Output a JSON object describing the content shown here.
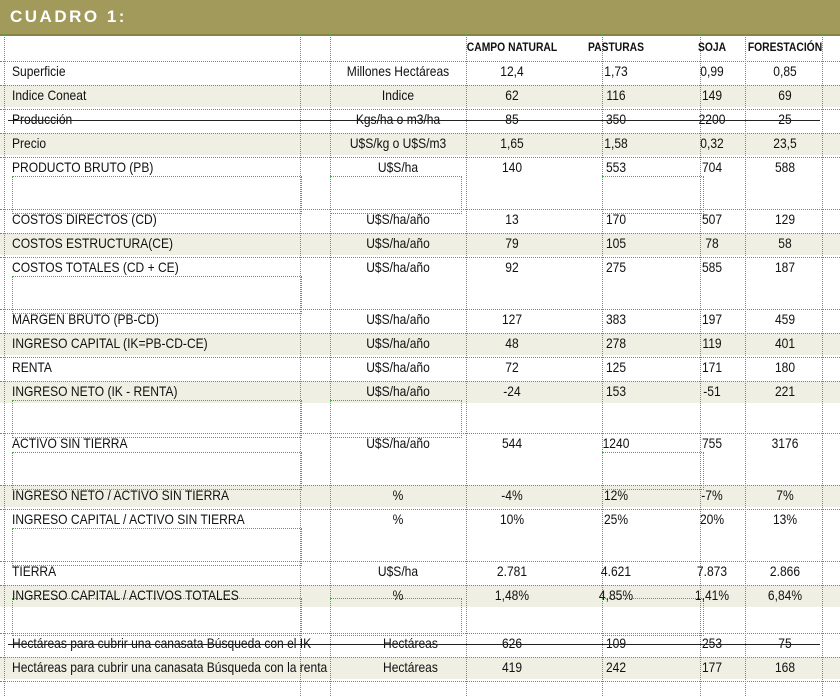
{
  "title": "CUADRO 1:",
  "headers": [
    "CAMPO NATURAL",
    "PASTURAS",
    "SOJA",
    "FORESTACIÓN"
  ],
  "rows": [
    {
      "label": "Superficie",
      "unit": "Millones Hectáreas",
      "values": [
        "12,4",
        "1,73",
        "0,99",
        "0,85"
      ]
    },
    {
      "label": "Indice Coneat",
      "unit": "Indice",
      "values": [
        "62",
        "116",
        "149",
        "69"
      ]
    },
    {
      "label": "Producción",
      "unit": "Kgs/ha o m3/ha",
      "values": [
        "85",
        "350",
        "2200",
        "25"
      ]
    },
    {
      "label": "Precio",
      "unit": "U$S/kg o U$S/m3",
      "values": [
        "1,65",
        "1,58",
        "0,32",
        "23,5"
      ]
    },
    {
      "label": "PRODUCTO BRUTO (PB)",
      "unit": "U$S/ha",
      "values": [
        "140",
        "553",
        "704",
        "588"
      ]
    },
    {
      "label": "COSTOS DIRECTOS (CD)",
      "unit": "U$S/ha/año",
      "values": [
        "13",
        "170",
        "507",
        "129"
      ]
    },
    {
      "label": "COSTOS ESTRUCTURA(CE)",
      "unit": "U$S/ha/año",
      "values": [
        "79",
        "105",
        "78",
        "58"
      ]
    },
    {
      "label": "COSTOS TOTALES (CD + CE)",
      "unit": "U$S/ha/año",
      "values": [
        "92",
        "275",
        "585",
        "187"
      ]
    },
    {
      "label": "MARGEN BRUTO (PB-CD)",
      "unit": "U$S/ha/año",
      "values": [
        "127",
        "383",
        "197",
        "459"
      ]
    },
    {
      "label": "INGRESO CAPITAL (IK=PB-CD-CE)",
      "unit": "U$S/ha/año",
      "values": [
        "48",
        "278",
        "119",
        "401"
      ]
    },
    {
      "label": "RENTA",
      "unit": "U$S/ha/año",
      "values": [
        "72",
        "125",
        "171",
        "180"
      ]
    },
    {
      "label": "INGRESO NETO (IK - RENTA)",
      "unit": "U$S/ha/año",
      "values": [
        "-24",
        "153",
        "-51",
        "221"
      ]
    },
    {
      "label": "ACTIVO SIN TIERRA",
      "unit": "U$S/ha/año",
      "values": [
        "544",
        "1240",
        "755",
        "3176"
      ]
    },
    {
      "label": "INGRESO NETO / ACTIVO SIN TIERRA",
      "unit": "%",
      "values": [
        "-4%",
        "12%",
        "-7%",
        "7%"
      ]
    },
    {
      "label": "INGRESO CAPITAL / ACTIVO SIN TIERRA",
      "unit": "%",
      "values": [
        "10%",
        "25%",
        "20%",
        "13%"
      ]
    },
    {
      "label": "TIERRA",
      "unit": "U$S/ha",
      "values": [
        "2.781",
        "4.621",
        "7.873",
        "2.866"
      ]
    },
    {
      "label": "INGRESO CAPITAL / ACTIVOS TOTALES",
      "unit": "%",
      "values": [
        "1,48%",
        "4,85%",
        "1,41%",
        "6,84%"
      ]
    },
    {
      "label": "Hectáreas para cubrir una canasata Búsqueda con el IK",
      "unit": "Hectáreas",
      "values": [
        "626",
        "109",
        "253",
        "75"
      ]
    },
    {
      "label": "Hectáreas para cubrir una canasata Búsqueda con la renta",
      "unit": "Hectáreas",
      "values": [
        "419",
        "242",
        "177",
        "168"
      ]
    }
  ],
  "colors": {
    "title_bar": "#a29a5a",
    "row_shade": "#f0efe3",
    "grid": "#3cb43c"
  }
}
